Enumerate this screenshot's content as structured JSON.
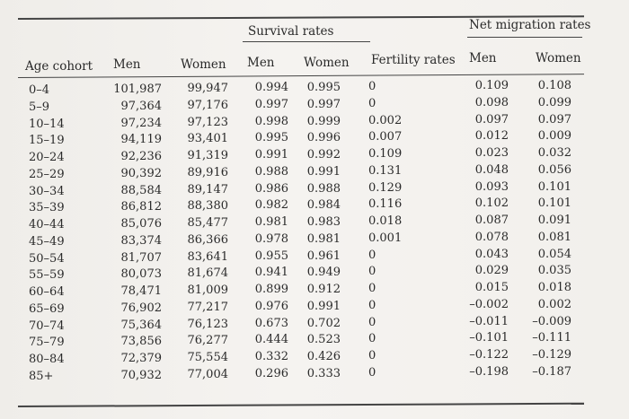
{
  "table": {
    "group_headers": {
      "survival": "Survival rates",
      "net_migration": "Net migration rates"
    },
    "columns": [
      "Age cohort",
      "Men",
      "Women",
      "Men",
      "Women",
      "Fertility rates",
      "Men",
      "Women"
    ],
    "rows": [
      [
        "0–4",
        "101,987",
        "99,947",
        "0.994",
        "0.995",
        "0",
        "0.109",
        "0.108"
      ],
      [
        "5–9",
        "97,364",
        "97,176",
        "0.997",
        "0.997",
        "0",
        "0.098",
        "0.099"
      ],
      [
        "10–14",
        "97,234",
        "97,123",
        "0.998",
        "0.999",
        "0.002",
        "0.097",
        "0.097"
      ],
      [
        "15–19",
        "94,119",
        "93,401",
        "0.995",
        "0.996",
        "0.007",
        "0.012",
        "0.009"
      ],
      [
        "20–24",
        "92,236",
        "91,319",
        "0.991",
        "0.992",
        "0.109",
        "0.023",
        "0.032"
      ],
      [
        "25–29",
        "90,392",
        "89,916",
        "0.988",
        "0.991",
        "0.131",
        "0.048",
        "0.056"
      ],
      [
        "30–34",
        "88,584",
        "89,147",
        "0.986",
        "0.988",
        "0.129",
        "0.093",
        "0.101"
      ],
      [
        "35–39",
        "86,812",
        "88,380",
        "0.982",
        "0.984",
        "0.116",
        "0.102",
        "0.101"
      ],
      [
        "40–44",
        "85,076",
        "85,477",
        "0.981",
        "0.983",
        "0.018",
        "0.087",
        "0.091"
      ],
      [
        "45–49",
        "83,374",
        "86,366",
        "0.978",
        "0.981",
        "0.001",
        "0.078",
        "0.081"
      ],
      [
        "50–54",
        "81,707",
        "83,641",
        "0.955",
        "0.961",
        "0",
        "0.043",
        "0.054"
      ],
      [
        "55–59",
        "80,073",
        "81,674",
        "0.941",
        "0.949",
        "0",
        "0.029",
        "0.035"
      ],
      [
        "60–64",
        "78,471",
        "81,009",
        "0.899",
        "0.912",
        "0",
        "0.015",
        "0.018"
      ],
      [
        "65–69",
        "76,902",
        "77,217",
        "0.976",
        "0.991",
        "0",
        "–0.002",
        "0.002"
      ],
      [
        "70–74",
        "75,364",
        "76,123",
        "0.673",
        "0.702",
        "0",
        "–0.011",
        "–0.009"
      ],
      [
        "75–79",
        "73,856",
        "76,277",
        "0.444",
        "0.523",
        "0",
        "–0.101",
        "–0.111"
      ],
      [
        "80–84",
        "72,379",
        "75,554",
        "0.332",
        "0.426",
        "0",
        "–0.122",
        "–0.129"
      ],
      [
        "85+",
        "70,932",
        "77,004",
        "0.296",
        "0.333",
        "0",
        "–0.198",
        "–0.187"
      ]
    ]
  }
}
